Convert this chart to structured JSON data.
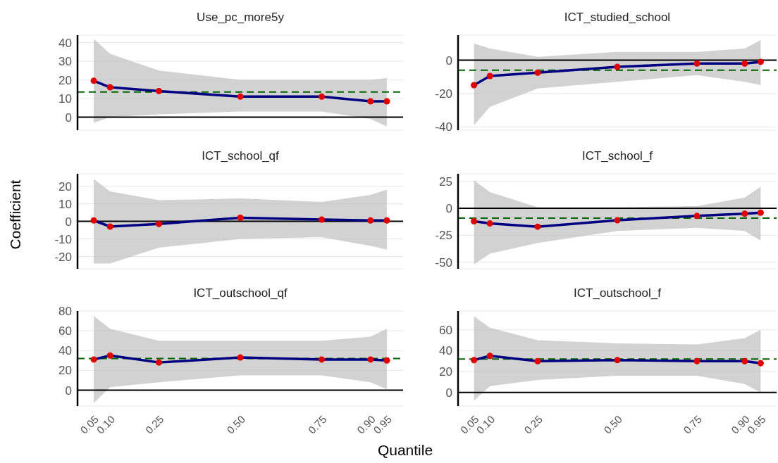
{
  "chart_data": [
    {
      "type": "line",
      "title": "Use_pc_more5y",
      "x": [
        0.05,
        0.1,
        0.25,
        0.5,
        0.75,
        0.9,
        0.95
      ],
      "series": [
        {
          "type": "line",
          "color": "#000080",
          "marker": "none",
          "values": [
            19.5,
            16,
            14,
            11,
            11,
            8.5,
            8.5
          ],
          "lower": [
            -3,
            0,
            1.5,
            3,
            3,
            -1,
            -5
          ],
          "upper": [
            42,
            34,
            25,
            20,
            20,
            20,
            21
          ]
        },
        {
          "type": "scatter",
          "color": "#e00000",
          "marker": "circle",
          "values": [
            19.5,
            16,
            14,
            11,
            11,
            8.5,
            8.5
          ]
        }
      ],
      "xlim": [
        0,
        1
      ],
      "ylim": [
        -7,
        44
      ],
      "yticks": [
        0,
        10,
        20,
        30,
        40
      ],
      "grid": "y",
      "tick_labels": "y",
      "ref_lines": [
        {
          "axis": "y",
          "value": 0,
          "color": "#000000",
          "line_style": "solid"
        },
        {
          "axis": "y",
          "value": 13.5,
          "color": "#006400",
          "line_style": "dashed"
        }
      ]
    },
    {
      "type": "line",
      "title": "ICT_studied_school",
      "x": [
        0.05,
        0.1,
        0.25,
        0.5,
        0.75,
        0.9,
        0.95
      ],
      "series": [
        {
          "type": "line",
          "color": "#000080",
          "marker": "none",
          "values": [
            -15,
            -9.5,
            -7.5,
            -4,
            -2,
            -2,
            -1
          ],
          "lower": [
            -39,
            -28,
            -17,
            -13,
            -9,
            -13,
            -15
          ],
          "upper": [
            10,
            7,
            2,
            5,
            5,
            7,
            12
          ]
        },
        {
          "type": "scatter",
          "color": "#e00000",
          "marker": "circle",
          "values": [
            -15,
            -9.5,
            -7.5,
            -4,
            -2,
            -2,
            -1
          ]
        }
      ],
      "xlim": [
        0,
        1
      ],
      "ylim": [
        -42,
        15
      ],
      "yticks": [
        -40,
        -20,
        0
      ],
      "grid": "y",
      "tick_labels": "y",
      "ref_lines": [
        {
          "axis": "y",
          "value": 0,
          "color": "#000000",
          "line_style": "solid"
        },
        {
          "axis": "y",
          "value": -6,
          "color": "#006400",
          "line_style": "dashed"
        }
      ]
    },
    {
      "type": "line",
      "title": "ICT_school_qf",
      "ylabel": "Coefficient",
      "x": [
        0.05,
        0.1,
        0.25,
        0.5,
        0.75,
        0.9,
        0.95
      ],
      "series": [
        {
          "type": "line",
          "color": "#000080",
          "marker": "none",
          "values": [
            0.5,
            -3,
            -1.5,
            2,
            1,
            0.5,
            0.5
          ],
          "lower": [
            -24,
            -24,
            -15,
            -10,
            -9,
            -14,
            -16
          ],
          "upper": [
            24,
            17,
            12,
            13,
            11,
            15,
            18
          ]
        },
        {
          "type": "scatter",
          "color": "#e00000",
          "marker": "circle",
          "values": [
            0.5,
            -3,
            -1.5,
            2,
            1,
            0.5,
            0.5
          ]
        }
      ],
      "xlim": [
        0,
        1
      ],
      "ylim": [
        -27,
        27
      ],
      "yticks": [
        -20,
        -10,
        0,
        10,
        20
      ],
      "grid": "y",
      "tick_labels": "y",
      "ref_lines": [
        {
          "axis": "y",
          "value": 0,
          "color": "#000000",
          "line_style": "solid"
        }
      ]
    },
    {
      "type": "line",
      "title": "ICT_school_f",
      "x": [
        0.05,
        0.1,
        0.25,
        0.5,
        0.75,
        0.9,
        0.95
      ],
      "series": [
        {
          "type": "line",
          "color": "#000080",
          "marker": "none",
          "values": [
            -12,
            -14,
            -17,
            -11,
            -7,
            -5,
            -4
          ],
          "lower": [
            -52,
            -42,
            -32,
            -21,
            -18,
            -21,
            -30
          ],
          "upper": [
            26,
            15,
            1,
            1,
            2,
            10,
            20
          ]
        },
        {
          "type": "scatter",
          "color": "#e00000",
          "marker": "circle",
          "values": [
            -12,
            -14,
            -17,
            -11,
            -7,
            -5,
            -4
          ]
        }
      ],
      "xlim": [
        0,
        1
      ],
      "ylim": [
        -56,
        32
      ],
      "yticks": [
        -50,
        -25,
        0,
        25
      ],
      "grid": "y",
      "tick_labels": "y",
      "ref_lines": [
        {
          "axis": "y",
          "value": 0,
          "color": "#000000",
          "line_style": "solid"
        },
        {
          "axis": "y",
          "value": -9,
          "color": "#006400",
          "line_style": "dashed"
        }
      ]
    },
    {
      "type": "line",
      "title": "ICT_outschool_qf",
      "xlabel": "Quantile",
      "x": [
        0.05,
        0.1,
        0.25,
        0.5,
        0.75,
        0.9,
        0.95
      ],
      "series": [
        {
          "type": "line",
          "color": "#000080",
          "marker": "none",
          "values": [
            31,
            35,
            28,
            33,
            31,
            31,
            30
          ],
          "lower": [
            -13,
            3,
            8,
            15,
            15,
            8,
            1
          ],
          "upper": [
            75,
            62,
            50,
            50,
            50,
            54,
            62
          ]
        },
        {
          "type": "scatter",
          "color": "#e00000",
          "marker": "circle",
          "values": [
            31,
            35,
            28,
            33,
            31,
            31,
            30
          ]
        }
      ],
      "xlim": [
        0,
        1
      ],
      "xticks": [
        {
          "value": 0.05,
          "label": "0.05"
        },
        {
          "value": 0.1,
          "label": "0.10"
        },
        {
          "value": 0.25,
          "label": "0.25"
        },
        {
          "value": 0.5,
          "label": "0.50"
        },
        {
          "value": 0.75,
          "label": "0.75"
        },
        {
          "value": 0.9,
          "label": "0.90"
        },
        {
          "value": 0.95,
          "label": "0.95"
        }
      ],
      "ylim": [
        -16,
        80
      ],
      "yticks": [
        0,
        20,
        40,
        60,
        80
      ],
      "grid": "y",
      "ref_lines": [
        {
          "axis": "y",
          "value": 0,
          "color": "#000000",
          "line_style": "solid"
        },
        {
          "axis": "y",
          "value": 32,
          "color": "#006400",
          "line_style": "dashed"
        }
      ]
    },
    {
      "type": "line",
      "title": "ICT_outschool_f",
      "x": [
        0.05,
        0.1,
        0.25,
        0.5,
        0.75,
        0.9,
        0.95
      ],
      "series": [
        {
          "type": "line",
          "color": "#000080",
          "marker": "none",
          "values": [
            31,
            35,
            30,
            31,
            30,
            30,
            28
          ],
          "lower": [
            -8,
            6,
            12,
            16,
            16,
            8,
            0
          ],
          "upper": [
            73,
            62,
            50,
            47,
            46,
            52,
            60
          ]
        },
        {
          "type": "scatter",
          "color": "#e00000",
          "marker": "circle",
          "values": [
            31,
            35,
            30,
            31,
            30,
            30,
            28
          ]
        }
      ],
      "xlim": [
        0,
        1
      ],
      "xticks": [
        {
          "value": 0.05,
          "label": "0.05"
        },
        {
          "value": 0.1,
          "label": "0.10"
        },
        {
          "value": 0.25,
          "label": "0.25"
        },
        {
          "value": 0.5,
          "label": "0.50"
        },
        {
          "value": 0.75,
          "label": "0.75"
        },
        {
          "value": 0.9,
          "label": "0.90"
        },
        {
          "value": 0.95,
          "label": "0.95"
        }
      ],
      "ylim": [
        -13,
        78
      ],
      "yticks": [
        0,
        20,
        40,
        60
      ],
      "grid": "y",
      "ref_lines": [
        {
          "axis": "y",
          "value": 0,
          "color": "#000000",
          "line_style": "solid"
        },
        {
          "axis": "y",
          "value": 32,
          "color": "#006400",
          "line_style": "dashed"
        }
      ]
    }
  ]
}
